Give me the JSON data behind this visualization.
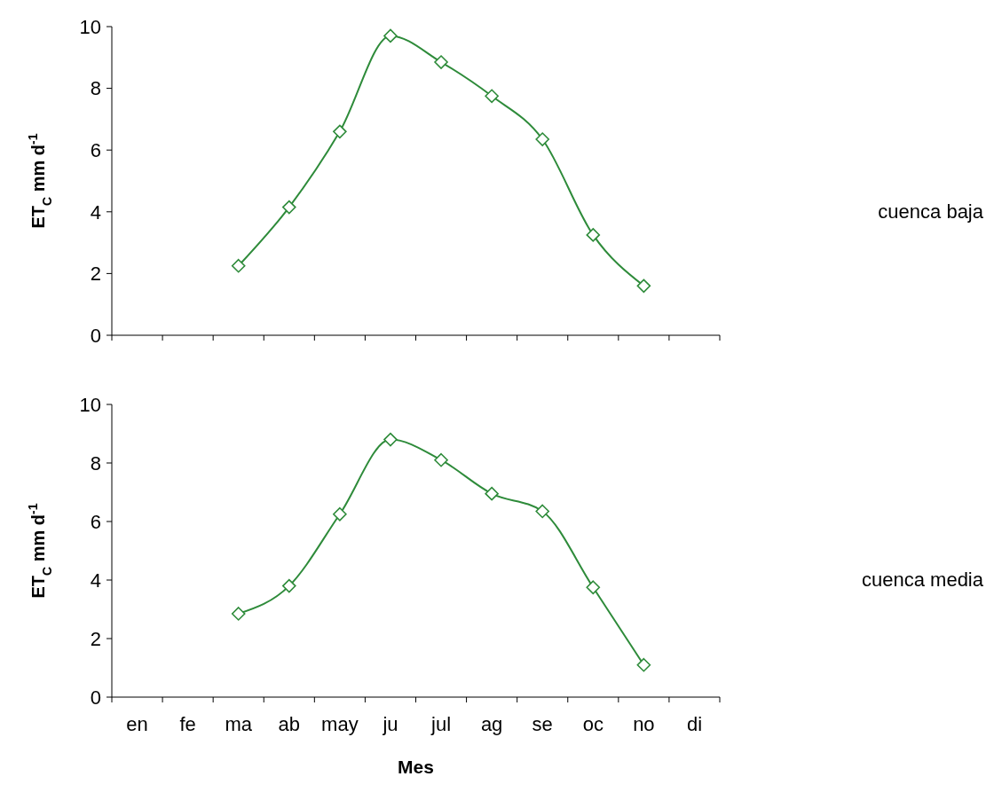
{
  "chart_data": [
    {
      "type": "line",
      "annotations": [
        "cuenca baja"
      ],
      "ylabel": "ET$_{C}$  mm d$^{-1}$",
      "categories": [
        null,
        null,
        null,
        null,
        null,
        null,
        null,
        null,
        null,
        null,
        null,
        null
      ],
      "series": [
        {
          "color": "#2e8b3a",
          "values": [
            null,
            null,
            2.25,
            4.15,
            6.6,
            9.7,
            8.85,
            7.75,
            6.35,
            3.25,
            1.6,
            null
          ]
        }
      ],
      "ylim": [
        0,
        10
      ],
      "yticks": [
        0,
        2,
        4,
        6,
        8,
        10
      ],
      "tick_labels": "y",
      "grid": false,
      "legend": false,
      "marker": "diamond",
      "line_style": "solid"
    },
    {
      "type": "line",
      "annotations": [
        "cuenca media"
      ],
      "xlabel": "Mes",
      "ylabel": "ET$_{C}$  mm d$^{-1}$",
      "categories": [
        "en",
        "fe",
        "ma",
        "ab",
        "may",
        "ju",
        "jul",
        "ag",
        "se",
        "oc",
        "no",
        "di"
      ],
      "series": [
        {
          "color": "#2e8b3a",
          "values": [
            null,
            null,
            2.85,
            3.8,
            6.25,
            8.8,
            8.1,
            6.95,
            6.35,
            3.75,
            1.1,
            null
          ]
        }
      ],
      "ylim": [
        0,
        10
      ],
      "yticks": [
        0,
        2,
        4,
        6,
        8,
        10
      ],
      "grid": false,
      "legend": false,
      "marker": "diamond",
      "line_style": "solid"
    }
  ]
}
